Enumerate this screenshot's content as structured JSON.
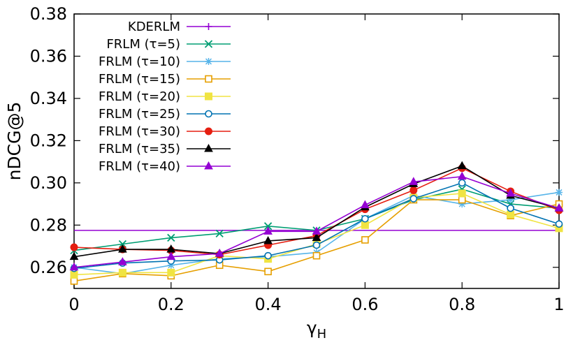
{
  "chart_data": {
    "type": "line",
    "title": "",
    "xlabel": "γ",
    "xlabel_subscript": "H",
    "ylabel": "nDCG@5",
    "xlim": [
      0,
      1
    ],
    "ylim": [
      0.25,
      0.38
    ],
    "xticks": [
      0,
      0.2,
      0.4,
      0.6,
      0.8,
      1
    ],
    "xtick_labels": [
      "0",
      "0.2",
      "0.4",
      "0.6",
      "0.8",
      "1"
    ],
    "yticks": [
      0.26,
      0.28,
      0.3,
      0.32,
      0.34,
      0.36,
      0.38
    ],
    "ytick_labels": [
      "0.26",
      "0.28",
      "0.30",
      "0.32",
      "0.34",
      "0.36",
      "0.38"
    ],
    "grid": false,
    "legend_position": "top-left",
    "x": [
      0,
      0.1,
      0.2,
      0.3,
      0.4,
      0.5,
      0.6,
      0.7,
      0.8,
      0.9,
      1.0
    ],
    "series": [
      {
        "name": "KDERLM",
        "color": "#9400d3",
        "marker": "plus",
        "baseline": true,
        "values": [
          0.2775,
          0.2775,
          0.2775,
          0.2775,
          0.2775,
          0.2775,
          0.2775,
          0.2775,
          0.2775,
          0.2775,
          0.2775
        ]
      },
      {
        "name": "FRLM (τ=5)",
        "color": "#009e73",
        "marker": "x",
        "values": [
          0.268,
          0.271,
          0.274,
          0.276,
          0.2795,
          0.2775,
          0.283,
          0.292,
          0.297,
          0.29,
          0.288
        ]
      },
      {
        "name": "FRLM (τ=10)",
        "color": "#56b4e9",
        "marker": "star",
        "values": [
          0.26,
          0.257,
          0.261,
          0.264,
          0.265,
          0.267,
          0.283,
          0.294,
          0.29,
          0.292,
          0.2955
        ]
      },
      {
        "name": "FRLM (τ=15)",
        "color": "#e69f00",
        "marker": "square-open",
        "values": [
          0.2535,
          0.257,
          0.256,
          0.261,
          0.258,
          0.2655,
          0.273,
          0.292,
          0.292,
          0.2845,
          0.29
        ]
      },
      {
        "name": "FRLM (τ=20)",
        "color": "#f0e442",
        "marker": "square-filled",
        "values": [
          0.2565,
          0.2575,
          0.2575,
          0.2655,
          0.264,
          0.271,
          0.28,
          0.293,
          0.295,
          0.285,
          0.2785
        ]
      },
      {
        "name": "FRLM (τ=25)",
        "color": "#0072b2",
        "marker": "circle-open",
        "values": [
          0.2595,
          0.262,
          0.263,
          0.2635,
          0.2655,
          0.2705,
          0.283,
          0.2925,
          0.3,
          0.288,
          0.2805
        ]
      },
      {
        "name": "FRLM (τ=30)",
        "color": "#e51e10",
        "marker": "circle-filled",
        "values": [
          0.2695,
          0.2685,
          0.268,
          0.266,
          0.2705,
          0.275,
          0.2875,
          0.2965,
          0.307,
          0.296,
          0.287
        ]
      },
      {
        "name": "FRLM (τ=35)",
        "color": "#000000",
        "marker": "triangle-filled",
        "values": [
          0.265,
          0.2685,
          0.2685,
          0.2665,
          0.2725,
          0.274,
          0.2885,
          0.2995,
          0.308,
          0.294,
          0.288
        ]
      },
      {
        "name": "FRLM (τ=40)",
        "color": "#9400d3",
        "marker": "triangle-filled",
        "values": [
          0.26,
          0.2625,
          0.265,
          0.2665,
          0.277,
          0.277,
          0.2895,
          0.3005,
          0.303,
          0.295,
          0.288
        ]
      }
    ]
  }
}
